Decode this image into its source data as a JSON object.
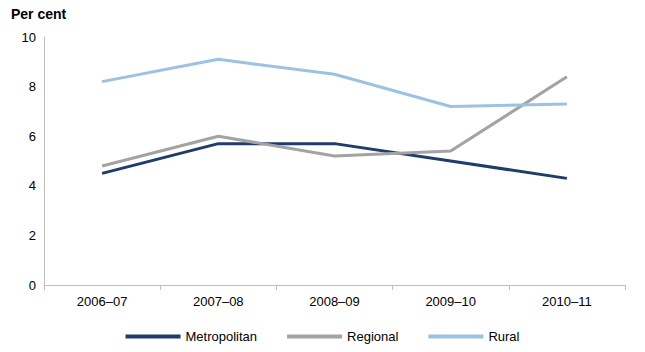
{
  "chart_data": {
    "type": "line",
    "ylabel": "Per cent",
    "categories": [
      "2006–07",
      "2007–08",
      "2008–09",
      "2009–10",
      "2010–11"
    ],
    "series": [
      {
        "name": "Metropolitan",
        "color": "#1f3d6b",
        "values": [
          4.5,
          5.7,
          5.7,
          5.0,
          4.3
        ]
      },
      {
        "name": "Regional",
        "color": "#a3a3a3",
        "values": [
          4.8,
          6.0,
          5.2,
          5.4,
          8.4
        ]
      },
      {
        "name": "Rural",
        "color": "#9cc2e3",
        "values": [
          8.2,
          9.1,
          8.5,
          7.2,
          7.3
        ]
      }
    ],
    "ylim": [
      0,
      10
    ],
    "yticks": [
      0,
      2,
      4,
      6,
      8,
      10
    ],
    "grid": false,
    "legend": "bottom"
  }
}
